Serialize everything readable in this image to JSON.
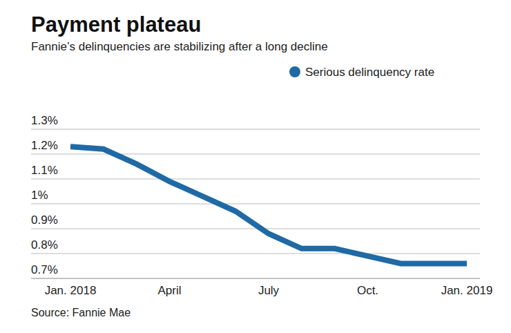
{
  "chart_data": {
    "type": "line",
    "title": "Payment plateau",
    "subtitle": "Fannie’s delinquencies are stabilizing after a long decline",
    "source": "Source: Fannie Mae",
    "categories": [
      "Jan. 2018",
      null,
      null,
      "April",
      null,
      null,
      "July",
      null,
      null,
      "Oct.",
      null,
      null,
      "Jan. 2019"
    ],
    "series": [
      {
        "name": "Serious delinquency rate",
        "color": "#1f6aa5",
        "values": [
          1.23,
          1.22,
          1.16,
          1.09,
          1.03,
          0.97,
          0.88,
          0.82,
          0.82,
          0.79,
          0.76,
          0.76,
          0.76
        ]
      }
    ],
    "ylim": [
      0.7,
      1.3
    ],
    "yticks": [
      {
        "value": 0.7,
        "label": "0.7%"
      },
      {
        "value": 0.8,
        "label": "0.8%"
      },
      {
        "value": 0.9,
        "label": "0.9%"
      },
      {
        "value": 1,
        "label": "1%"
      },
      {
        "value": 1.1,
        "label": "1.1%"
      },
      {
        "value": 1.2,
        "label": "1.2%"
      },
      {
        "value": 1.3,
        "label": "1.3%"
      }
    ],
    "grid": true,
    "legend": "top-right"
  }
}
